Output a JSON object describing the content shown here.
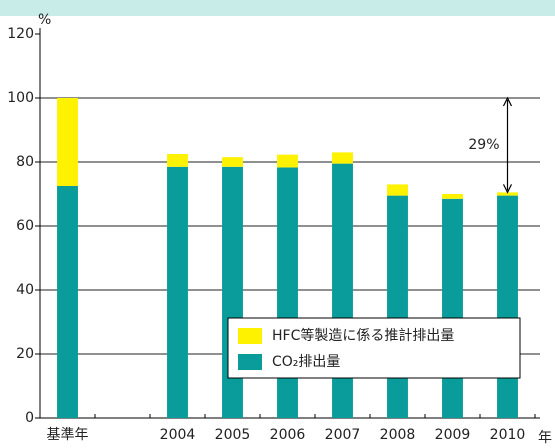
{
  "chart_data": {
    "type": "stacked_bar",
    "y_label": "%",
    "x_label": "年",
    "categories": [
      "基準年",
      null,
      "2004",
      "2005",
      "2006",
      "2007",
      "2008",
      "2009",
      "2010"
    ],
    "series": [
      {
        "name": "CO₂排出量",
        "color": "#0a9b9b",
        "values": [
          72.5,
          null,
          78.5,
          78.5,
          78.3,
          79.5,
          69.5,
          68.5,
          69.5
        ]
      },
      {
        "name": "HFC等製造に係る推計排出量",
        "color": "#fff200",
        "values": [
          27.5,
          null,
          4,
          3,
          4,
          3.5,
          3.5,
          1.5,
          1
        ]
      }
    ],
    "annotation": "29%",
    "ylim": [
      0,
      120
    ],
    "yticks": [
      0,
      20,
      40,
      60,
      80,
      100,
      120
    ],
    "grid": true
  }
}
